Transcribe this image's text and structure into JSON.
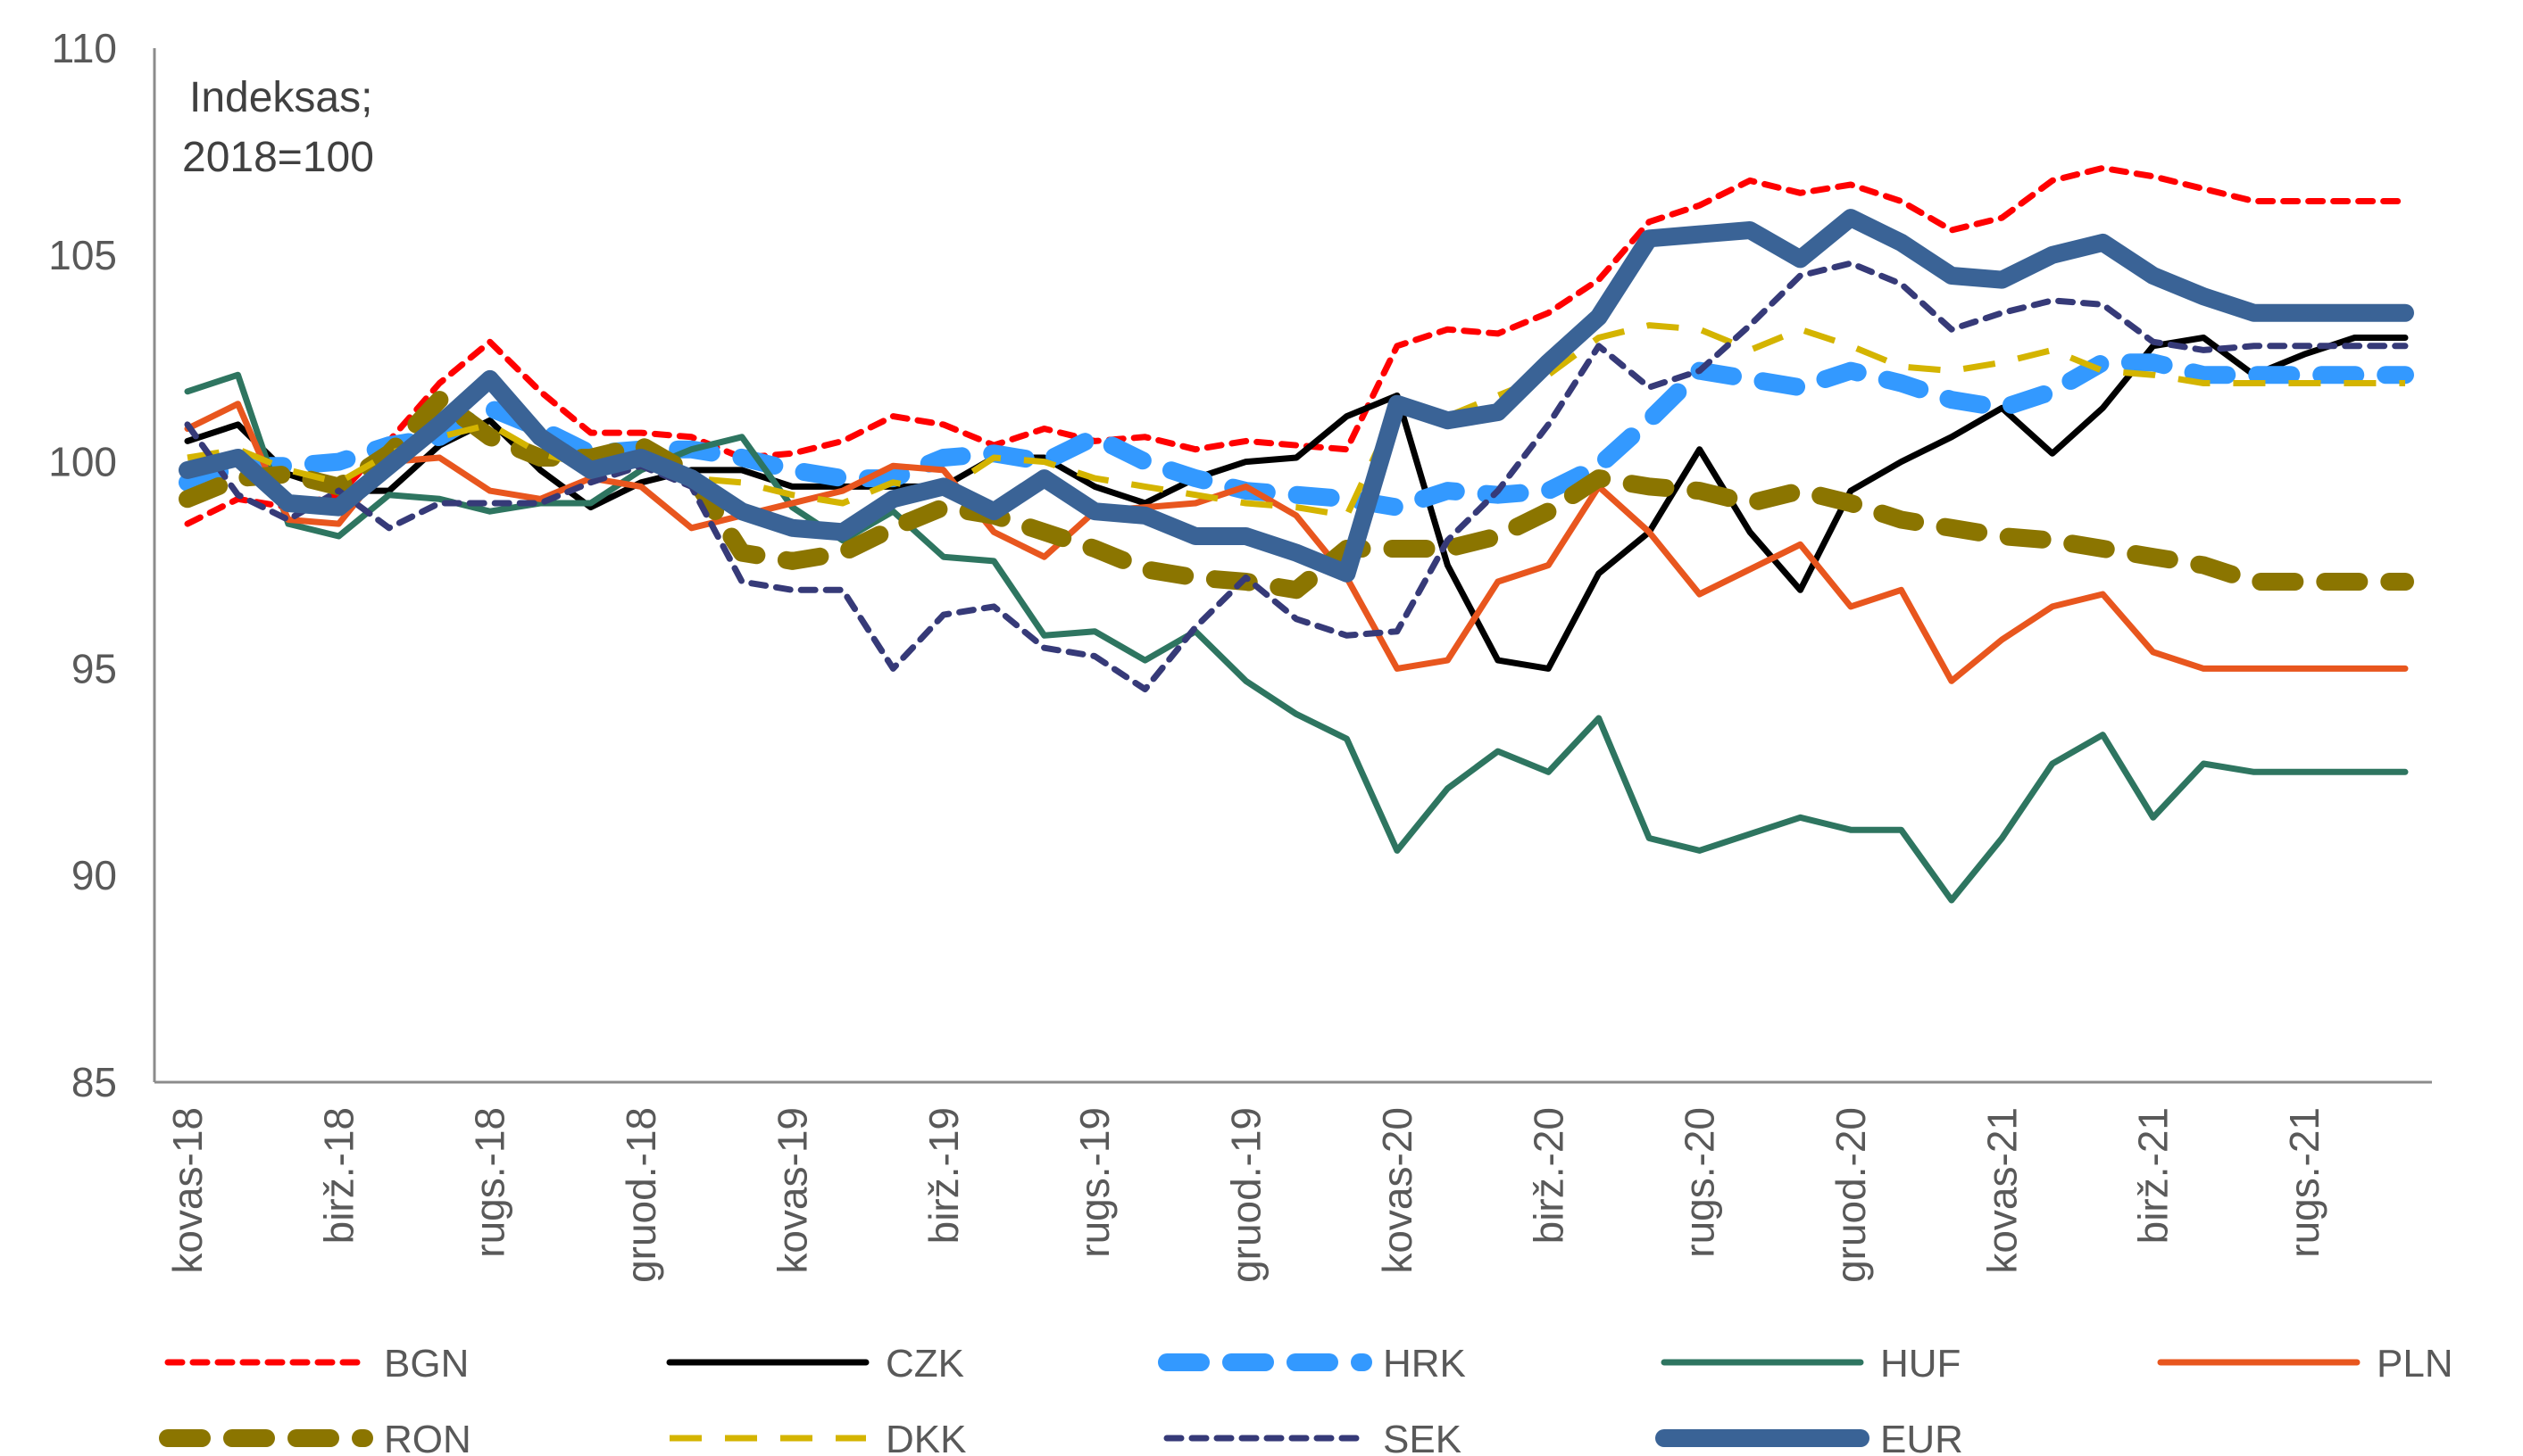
{
  "chart_data": {
    "type": "line",
    "title": "",
    "annotation": [
      "Indeksas;",
      "2018=100"
    ],
    "xlabel": "",
    "ylabel": "",
    "ylim": [
      85,
      110
    ],
    "yticks": [
      85,
      90,
      95,
      100,
      105,
      110
    ],
    "grid": false,
    "legend_position": "bottom",
    "x": [
      "2018-01",
      "2018-02",
      "2018-03",
      "2018-04",
      "2018-05",
      "2018-06",
      "2018-07",
      "2018-08",
      "2018-09",
      "2018-10",
      "2018-11",
      "2018-12",
      "2019-01",
      "2019-02",
      "2019-03",
      "2019-04",
      "2019-05",
      "2019-06",
      "2019-07",
      "2019-08",
      "2019-09",
      "2019-10",
      "2019-11",
      "2019-12",
      "2020-01",
      "2020-02",
      "2020-03",
      "2020-04",
      "2020-05",
      "2020-06",
      "2020-07",
      "2020-08",
      "2020-09",
      "2020-10",
      "2020-11",
      "2020-12",
      "2021-01",
      "2021-02",
      "2021-03",
      "2021-04",
      "2021-05",
      "2021-06",
      "2021-07",
      "2021-08",
      "2021-09"
    ],
    "xtick_labels": [
      {
        "index": 0,
        "label": "kovas-18"
      },
      {
        "index": 3,
        "label": "birž.-18"
      },
      {
        "index": 6,
        "label": "rugs.-18"
      },
      {
        "index": 9,
        "label": "gruod.-18"
      },
      {
        "index": 12,
        "label": "kovas-19"
      },
      {
        "index": 15,
        "label": "birž.-19"
      },
      {
        "index": 18,
        "label": "rugs.-19"
      },
      {
        "index": 21,
        "label": "gruod.-19"
      },
      {
        "index": 24,
        "label": "kovas-20"
      },
      {
        "index": 27,
        "label": "birž.-20"
      },
      {
        "index": 30,
        "label": "rugs.-20"
      },
      {
        "index": 33,
        "label": "gruod.-20"
      },
      {
        "index": 36,
        "label": "kovas-21"
      },
      {
        "index": 39,
        "label": "birž.-21"
      },
      {
        "index": 42,
        "label": "rugs.-21"
      }
    ],
    "series": [
      {
        "name": "BGN",
        "color": "#FF0000",
        "style": "dotted",
        "width": 5,
        "values": [
          98.5,
          99.1,
          98.9,
          99.2,
          100.5,
          101.9,
          102.9,
          101.7,
          100.7,
          100.7,
          100.6,
          100.1,
          100.2,
          100.5,
          101.1,
          100.9,
          100.4,
          100.8,
          100.5,
          100.6,
          100.3,
          100.5,
          100.4,
          100.3,
          102.8,
          103.2,
          103.1,
          103.6,
          104.4,
          105.8,
          106.2,
          106.8,
          106.5,
          106.7,
          106.3,
          105.6,
          105.9,
          106.8,
          107.1,
          106.9,
          106.6,
          106.3,
          106.3,
          106.3,
          106.3
        ]
      },
      {
        "name": "CZK",
        "color": "#000000",
        "style": "solid",
        "width": 5,
        "values": [
          100.5,
          100.9,
          99.7,
          99.3,
          99.3,
          100.4,
          101.0,
          99.8,
          98.9,
          99.5,
          99.8,
          99.8,
          99.4,
          99.4,
          99.4,
          99.4,
          100.1,
          100.1,
          99.4,
          99.0,
          99.6,
          100.0,
          100.1,
          101.1,
          101.6,
          97.5,
          95.2,
          95.0,
          97.3,
          98.3,
          100.3,
          98.3,
          96.9,
          99.3,
          100.0,
          100.6,
          101.3,
          100.2,
          101.3,
          102.8,
          103.0,
          102.1,
          102.6,
          103.0,
          103.0
        ]
      },
      {
        "name": "HRK",
        "color": "#3399FF",
        "style": "dashed-bold",
        "width": 14,
        "values": [
          99.5,
          99.9,
          99.9,
          100.0,
          100.4,
          100.6,
          101.3,
          100.8,
          100.2,
          100.3,
          100.3,
          100.1,
          99.8,
          99.6,
          99.6,
          100.1,
          100.2,
          100.0,
          100.6,
          100.0,
          99.6,
          99.3,
          99.2,
          99.1,
          98.9,
          99.3,
          99.2,
          99.3,
          99.9,
          101.0,
          102.2,
          102.0,
          101.8,
          102.2,
          101.9,
          101.5,
          101.3,
          101.7,
          102.4,
          102.4,
          102.1,
          102.1,
          102.1,
          102.1,
          102.1
        ]
      },
      {
        "name": "HUF",
        "color": "#2E7560",
        "style": "solid",
        "width": 5,
        "values": [
          101.7,
          102.1,
          98.5,
          98.2,
          99.2,
          99.1,
          98.8,
          99.0,
          99.0,
          99.8,
          100.3,
          100.6,
          98.9,
          98.1,
          98.8,
          97.7,
          97.6,
          95.8,
          95.9,
          95.2,
          95.9,
          94.7,
          93.9,
          93.3,
          90.6,
          92.1,
          93.0,
          92.5,
          93.8,
          90.9,
          90.6,
          91.0,
          91.4,
          91.1,
          91.1,
          89.4,
          90.9,
          92.7,
          93.4,
          91.4,
          92.7,
          92.5,
          92.5,
          92.5,
          92.5
        ]
      },
      {
        "name": "PLN",
        "color": "#E8561E",
        "style": "solid",
        "width": 5,
        "values": [
          100.8,
          101.4,
          98.6,
          98.5,
          100.0,
          100.1,
          99.3,
          99.1,
          99.6,
          99.4,
          98.4,
          98.7,
          99.0,
          99.3,
          99.9,
          99.8,
          98.3,
          97.7,
          98.8,
          98.9,
          99.0,
          99.4,
          98.7,
          97.2,
          95.0,
          95.2,
          97.1,
          97.5,
          99.4,
          98.3,
          96.8,
          97.4,
          98.0,
          96.5,
          96.9,
          94.7,
          95.7,
          96.5,
          96.8,
          95.4,
          95.0,
          95.0,
          95.0,
          95.0,
          95.0
        ]
      },
      {
        "name": "RON",
        "color": "#8B7500",
        "style": "dashed-bold",
        "width": 14,
        "values": [
          99.1,
          99.6,
          99.7,
          99.4,
          100.2,
          101.5,
          100.6,
          100.1,
          100.1,
          100.4,
          99.7,
          97.8,
          97.6,
          97.8,
          98.4,
          98.9,
          98.7,
          98.3,
          97.9,
          97.4,
          97.2,
          97.1,
          96.9,
          97.9,
          97.9,
          97.9,
          98.2,
          98.8,
          99.6,
          99.4,
          99.3,
          99.0,
          99.3,
          99.0,
          98.6,
          98.4,
          98.2,
          98.1,
          97.9,
          97.7,
          97.5,
          97.1,
          97.1,
          97.1,
          97.1
        ]
      },
      {
        "name": "DKK",
        "color": "#D4B400",
        "style": "dashed",
        "width": 5,
        "values": [
          100.1,
          100.3,
          99.8,
          99.5,
          100.2,
          100.6,
          100.9,
          100.2,
          99.9,
          100.1,
          99.6,
          99.5,
          99.2,
          99.0,
          99.5,
          99.3,
          100.1,
          100.0,
          99.6,
          99.4,
          99.2,
          99.0,
          98.9,
          98.7,
          101.3,
          101.1,
          101.6,
          102.1,
          103.0,
          103.3,
          103.2,
          102.7,
          103.2,
          102.8,
          102.3,
          102.2,
          102.4,
          102.7,
          102.2,
          102.1,
          101.9,
          101.9,
          101.9,
          101.9,
          101.9
        ]
      },
      {
        "name": "SEK",
        "color": "#363A78",
        "style": "dotted",
        "width": 5,
        "values": [
          100.9,
          99.2,
          98.6,
          99.3,
          98.4,
          99.0,
          99.0,
          99.0,
          99.5,
          99.9,
          99.4,
          97.1,
          96.9,
          96.9,
          95.0,
          96.3,
          96.5,
          95.5,
          95.3,
          94.5,
          96.0,
          97.2,
          96.2,
          95.8,
          95.9,
          98.1,
          99.3,
          100.9,
          102.8,
          101.8,
          102.2,
          103.3,
          104.5,
          104.8,
          104.3,
          103.2,
          103.6,
          103.9,
          103.8,
          102.9,
          102.7,
          102.8,
          102.8,
          102.8,
          102.8
        ]
      },
      {
        "name": "EUR",
        "color": "#3A6396",
        "style": "solid-bold",
        "width": 16,
        "values": [
          99.8,
          100.1,
          99.0,
          98.9,
          99.9,
          100.9,
          102.0,
          100.6,
          99.8,
          100.1,
          99.6,
          98.8,
          98.4,
          98.3,
          99.1,
          99.4,
          98.8,
          99.6,
          98.8,
          98.7,
          98.2,
          98.2,
          97.8,
          97.3,
          101.4,
          101.0,
          101.2,
          102.4,
          103.5,
          105.4,
          105.5,
          105.6,
          104.9,
          105.9,
          105.3,
          104.5,
          104.4,
          105.0,
          105.3,
          104.5,
          104.0,
          103.6,
          103.6,
          103.6,
          103.6
        ]
      }
    ]
  }
}
